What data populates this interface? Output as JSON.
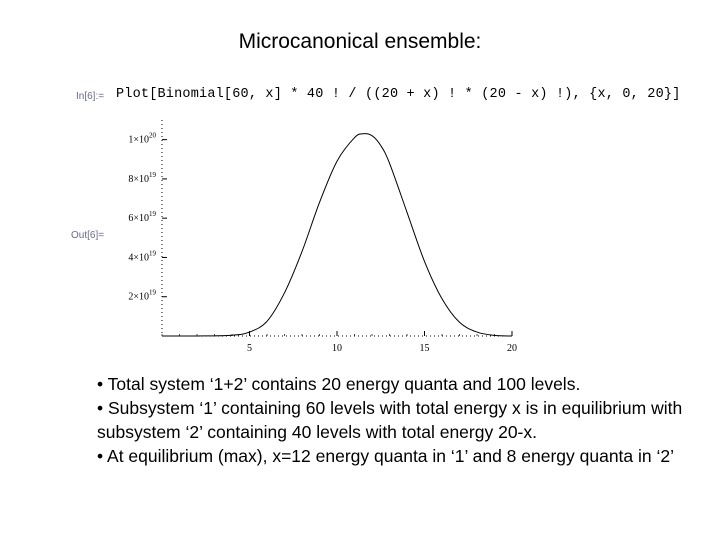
{
  "slide": {
    "title": "Microcanonical ensemble:"
  },
  "notebook": {
    "in_label": "In[6]:=",
    "out_label": "Out[6]=",
    "input_code": "Plot[Binomial[60, x] * 40 ! / ((20 + x) ! * (20 - x) !), {x, 0, 20}]"
  },
  "chart_data": {
    "type": "line",
    "x_ticks": [
      {
        "value": 5,
        "label": "5"
      },
      {
        "value": 10,
        "label": "10"
      },
      {
        "value": 15,
        "label": "15"
      },
      {
        "value": 20,
        "label": "20"
      }
    ],
    "y_ticks": [
      {
        "value": 2e+19,
        "mantissa": "2",
        "exp": "19"
      },
      {
        "value": 4e+19,
        "mantissa": "4",
        "exp": "19"
      },
      {
        "value": 6e+19,
        "mantissa": "6",
        "exp": "19"
      },
      {
        "value": 8e+19,
        "mantissa": "8",
        "exp": "19"
      },
      {
        "value": 1e+20,
        "mantissa": "1",
        "exp": "20"
      }
    ],
    "xlim": [
      0,
      20
    ],
    "ylim": [
      0,
      1.1e+20
    ],
    "series": [
      {
        "x": [
          0,
          2,
          4,
          5,
          6,
          7,
          8,
          9,
          10,
          11,
          11.5,
          12,
          12.5,
          13,
          14,
          15,
          16,
          17,
          18,
          19,
          20
        ],
        "y": [
          0,
          1e+16,
          4e+17,
          2e+18,
          7.5e+18,
          2.2e+19,
          4.3e+19,
          6.8e+19,
          8.9e+19,
          1.01e+20,
          1.03e+20,
          1.02e+20,
          9.7e+19,
          8.8e+19,
          6.3e+19,
          3.8e+19,
          1.9e+19,
          7e+18,
          2e+18,
          3e+17,
          0
        ]
      }
    ],
    "color": "#000000"
  },
  "bullets": [
    "• Total system ‘1+2’ contains 20 energy quanta and 100 levels.",
    "• Subsystem ‘1’  containing 60 levels with total energy x is in equilibrium with subsystem ‘2’ containing 40 levels with total energy 20-x.",
    "• At equilibrium (max), x=12 energy quanta in ‘1’ and 8 energy quanta in ‘2’"
  ]
}
